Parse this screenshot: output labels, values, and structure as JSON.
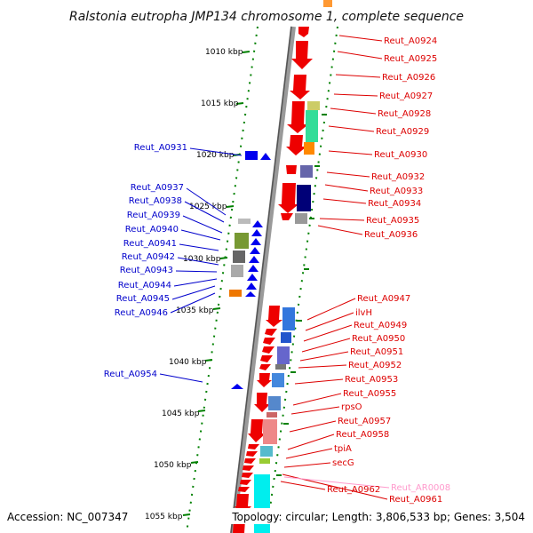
{
  "title": "Ralstonia eutropha JMP134 chromosome 1, complete sequence",
  "footer": {
    "accession": "Accession: NC_007347",
    "topology": "Topology: circular; Length: 3,806,533 bp; Genes: 3,504"
  },
  "colors": {
    "left_label": "#0000cc",
    "right_label": "#dd0000",
    "rna_label": "#ff99cc",
    "tick": "#008000",
    "backbone": "#808080",
    "arrow_red": "#ee0000",
    "arrow_blue": "#0000ee"
  },
  "scale": [
    {
      "label": "1010 kbp"
    },
    {
      "label": "1015 kbp"
    },
    {
      "label": "1020 kbp"
    },
    {
      "label": "1025 kbp"
    },
    {
      "label": "1030 kbp"
    },
    {
      "label": "1035 kbp"
    },
    {
      "label": "1040 kbp"
    },
    {
      "label": "1045 kbp"
    },
    {
      "label": "1050 kbp"
    },
    {
      "label": "1055 kbp"
    }
  ],
  "left_genes": [
    "Reut_A0931",
    "Reut_A0937",
    "Reut_A0938",
    "Reut_A0939",
    "Reut_A0940",
    "Reut_A0941",
    "Reut_A0942",
    "Reut_A0943",
    "Reut_A0944",
    "Reut_A0945",
    "Reut_A0946",
    "Reut_A0954"
  ],
  "right_genes": [
    "Reut_A0924",
    "Reut_A0925",
    "Reut_A0926",
    "Reut_A0927",
    "Reut_A0928",
    "Reut_A0929",
    "Reut_A0930",
    "Reut_A0932",
    "Reut_A0933",
    "Reut_A0934",
    "Reut_A0935",
    "Reut_A0936",
    "Reut_A0947",
    "ilvH",
    "Reut_A0949",
    "Reut_A0950",
    "Reut_A0951",
    "Reut_A0952",
    "Reut_A0953",
    "Reut_A0955",
    "rpsO",
    "Reut_A0957",
    "Reut_A0958",
    "tpiA",
    "secG",
    "Reut_AR0008",
    "Reut_A0961",
    "Reut_A0962"
  ]
}
